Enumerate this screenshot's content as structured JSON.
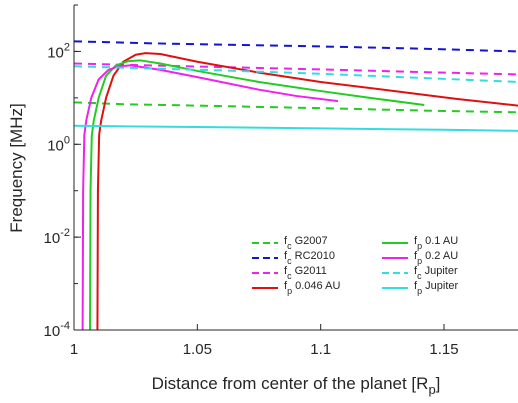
{
  "chart_data": {
    "type": "line",
    "xlabel": "Distance from center of the planet [R",
    "xlabel_sub": "p",
    "xlabel_close": "]",
    "ylabel": "Frequency [MHz]",
    "xlim": [
      1,
      1.18
    ],
    "ylim": [
      0.0001,
      1000
    ],
    "yscale": "log",
    "x_ticks": [
      {
        "value": 1,
        "label": "1"
      },
      {
        "value": 1.05,
        "label": "1.05"
      },
      {
        "value": 1.1,
        "label": "1.1"
      },
      {
        "value": 1.15,
        "label": "1.15"
      }
    ],
    "y_ticks": [
      {
        "value": 0.0001,
        "base": "10",
        "exp": "-4"
      },
      {
        "value": 0.01,
        "base": "10",
        "exp": "-2"
      },
      {
        "value": 1,
        "base": "10",
        "exp": "0"
      },
      {
        "value": 100,
        "base": "10",
        "exp": "2"
      }
    ],
    "grid": false,
    "legend_position": "bottom-right",
    "series": [
      {
        "name_main": "f",
        "name_sub": "c",
        "name_rest": " G2007",
        "color": "#22cc22",
        "dash": true,
        "points": [
          [
            1,
            8.0
          ],
          [
            1.02,
            7.3
          ],
          [
            1.05,
            6.8
          ],
          [
            1.1,
            6.0
          ],
          [
            1.15,
            5.2
          ],
          [
            1.18,
            4.9
          ]
        ]
      },
      {
        "name_main": "f",
        "name_sub": "c",
        "name_rest": " RC2010",
        "color": "#1515cc",
        "dash": true,
        "points": [
          [
            1,
            165
          ],
          [
            1.03,
            150
          ],
          [
            1.06,
            140
          ],
          [
            1.1,
            128
          ],
          [
            1.14,
            115
          ],
          [
            1.18,
            100
          ]
        ]
      },
      {
        "name_main": "f",
        "name_sub": "c",
        "name_rest": " G2011",
        "color": "#ee22ee",
        "dash": true,
        "points": [
          [
            1,
            55
          ],
          [
            1.03,
            50
          ],
          [
            1.06,
            46
          ],
          [
            1.1,
            41
          ],
          [
            1.14,
            36
          ],
          [
            1.18,
            32
          ]
        ]
      },
      {
        "name_main": "f",
        "name_sub": "p",
        "name_rest": " 0.046 AU",
        "color": "#dd1111",
        "dash": false,
        "points": [
          [
            1.0095,
            0.0001
          ],
          [
            1.0097,
            0.1
          ],
          [
            1.0102,
            1.6
          ],
          [
            1.011,
            3.2
          ],
          [
            1.013,
            10
          ],
          [
            1.016,
            30
          ],
          [
            1.02,
            60
          ],
          [
            1.025,
            85
          ],
          [
            1.029,
            92
          ],
          [
            1.035,
            88
          ],
          [
            1.05,
            60
          ],
          [
            1.075,
            35
          ],
          [
            1.1,
            22
          ],
          [
            1.13,
            14
          ],
          [
            1.155,
            9.5
          ],
          [
            1.18,
            6.8
          ]
        ]
      },
      {
        "name_main": "f",
        "name_sub": "p",
        "name_rest": " 0.1 AU",
        "color": "#22cc22",
        "dash": false,
        "points": [
          [
            1.0065,
            0.0001
          ],
          [
            1.0067,
            0.1
          ],
          [
            1.0072,
            1.5
          ],
          [
            1.008,
            3.2
          ],
          [
            1.01,
            10
          ],
          [
            1.013,
            30
          ],
          [
            1.017,
            50
          ],
          [
            1.022,
            62
          ],
          [
            1.027,
            64
          ],
          [
            1.035,
            55
          ],
          [
            1.05,
            38
          ],
          [
            1.075,
            22
          ],
          [
            1.1,
            14
          ],
          [
            1.12,
            10
          ],
          [
            1.142,
            7.0
          ]
        ]
      },
      {
        "name_main": "f",
        "name_sub": "p",
        "name_rest": " 0.2 AU",
        "color": "#ee22ee",
        "dash": false,
        "points": [
          [
            1.0035,
            0.0001
          ],
          [
            1.0037,
            0.1
          ],
          [
            1.0042,
            1.6
          ],
          [
            1.005,
            3.3
          ],
          [
            1.007,
            10
          ],
          [
            1.01,
            25
          ],
          [
            1.014,
            40
          ],
          [
            1.018,
            48
          ],
          [
            1.023,
            50
          ],
          [
            1.035,
            40
          ],
          [
            1.05,
            28
          ],
          [
            1.075,
            15
          ],
          [
            1.09,
            11
          ],
          [
            1.107,
            8.5
          ]
        ]
      },
      {
        "name_main": "f",
        "name_sub": "c",
        "name_rest": " Jupiter",
        "color": "#33dddd",
        "dash": true,
        "points": [
          [
            1,
            48
          ],
          [
            1.03,
            43
          ],
          [
            1.06,
            39
          ],
          [
            1.1,
            33
          ],
          [
            1.14,
            27
          ],
          [
            1.18,
            22
          ]
        ]
      },
      {
        "name_main": "f",
        "name_sub": "p",
        "name_rest": " Jupiter",
        "color": "#33dddd",
        "dash": false,
        "points": [
          [
            1,
            2.5
          ],
          [
            1.05,
            2.35
          ],
          [
            1.1,
            2.2
          ],
          [
            1.15,
            2.05
          ],
          [
            1.18,
            1.95
          ]
        ]
      }
    ]
  }
}
